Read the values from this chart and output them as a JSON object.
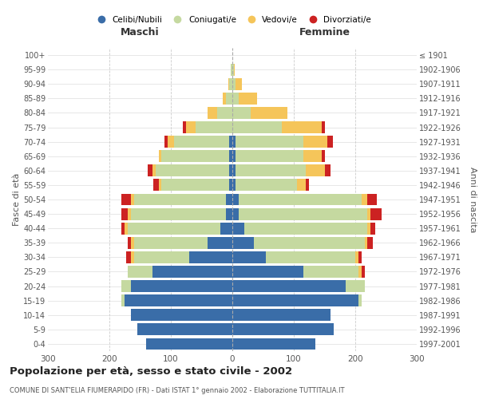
{
  "age_groups": [
    "0-4",
    "5-9",
    "10-14",
    "15-19",
    "20-24",
    "25-29",
    "30-34",
    "35-39",
    "40-44",
    "45-49",
    "50-54",
    "55-59",
    "60-64",
    "65-69",
    "70-74",
    "75-79",
    "80-84",
    "85-89",
    "90-94",
    "95-99",
    "100+"
  ],
  "birth_years": [
    "1997-2001",
    "1992-1996",
    "1987-1991",
    "1982-1986",
    "1977-1981",
    "1972-1976",
    "1967-1971",
    "1962-1966",
    "1957-1961",
    "1952-1956",
    "1947-1951",
    "1942-1946",
    "1937-1941",
    "1932-1936",
    "1927-1931",
    "1922-1926",
    "1917-1921",
    "1912-1916",
    "1907-1911",
    "1902-1906",
    "≤ 1901"
  ],
  "males": {
    "celibi": [
      140,
      155,
      165,
      175,
      165,
      130,
      70,
      40,
      20,
      10,
      10,
      5,
      5,
      5,
      5,
      0,
      0,
      0,
      0,
      0,
      0
    ],
    "coniugati": [
      0,
      0,
      0,
      5,
      15,
      40,
      90,
      120,
      150,
      155,
      150,
      110,
      120,
      110,
      90,
      60,
      25,
      10,
      5,
      2,
      0
    ],
    "vedovi": [
      0,
      0,
      0,
      0,
      0,
      0,
      5,
      5,
      5,
      5,
      5,
      5,
      5,
      5,
      10,
      15,
      15,
      5,
      2,
      0,
      0
    ],
    "divorziati": [
      0,
      0,
      0,
      0,
      0,
      0,
      8,
      5,
      5,
      10,
      15,
      8,
      8,
      0,
      5,
      5,
      0,
      0,
      0,
      0,
      0
    ]
  },
  "females": {
    "nubili": [
      135,
      165,
      160,
      205,
      185,
      115,
      55,
      35,
      20,
      10,
      10,
      5,
      5,
      5,
      5,
      0,
      0,
      0,
      0,
      0,
      0
    ],
    "coniugate": [
      0,
      0,
      0,
      5,
      30,
      90,
      145,
      180,
      200,
      210,
      200,
      100,
      115,
      110,
      110,
      80,
      30,
      10,
      5,
      2,
      0
    ],
    "vedove": [
      0,
      0,
      0,
      0,
      0,
      5,
      5,
      5,
      5,
      5,
      10,
      15,
      30,
      30,
      40,
      65,
      60,
      30,
      10,
      2,
      0
    ],
    "divorziate": [
      0,
      0,
      0,
      0,
      0,
      5,
      5,
      8,
      8,
      18,
      15,
      5,
      10,
      5,
      8,
      5,
      0,
      0,
      0,
      0,
      0
    ]
  },
  "colors": {
    "celibi": "#3a6da8",
    "coniugati": "#c5d9a0",
    "vedovi": "#f5c55a",
    "divorziati": "#cc2222"
  },
  "title": "Popolazione per età, sesso e stato civile - 2002",
  "subtitle": "COMUNE DI SANT'ELIA FIUMERAPIDO (FR) - Dati ISTAT 1° gennaio 2002 - Elaborazione TUTTITALIA.IT",
  "xlabel_left": "Maschi",
  "xlabel_right": "Femmine",
  "ylabel_left": "Fasce di età",
  "ylabel_right": "Anni di nascita",
  "xlim": 300,
  "background_color": "#ffffff",
  "grid_color": "#cccccc"
}
